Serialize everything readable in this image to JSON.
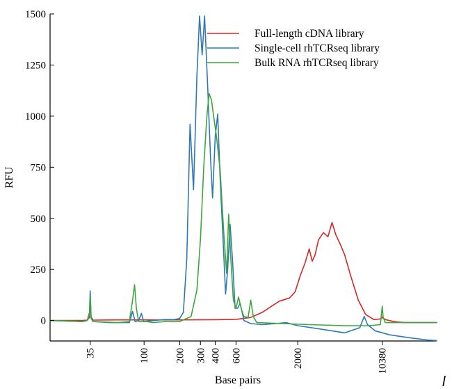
{
  "chart_data": {
    "type": "line",
    "title": "",
    "xlabel": "Base pairs",
    "ylabel": "RFU",
    "x_scale": "log",
    "ylim": [
      -100,
      1500
    ],
    "y_ticks": [
      0,
      250,
      500,
      750,
      1000,
      1250,
      1500
    ],
    "x_ticks": [
      {
        "value": 35,
        "label": "35"
      },
      {
        "value": 100,
        "label": "100"
      },
      {
        "value": 200,
        "label": "200"
      },
      {
        "value": 300,
        "label": "300"
      },
      {
        "value": 400,
        "label": "400"
      },
      {
        "value": 600,
        "label": "600"
      },
      {
        "value": 2000,
        "label": "2000"
      },
      {
        "value": 10380,
        "label": "10380"
      }
    ],
    "legend_position": "top-right",
    "grid": false,
    "corner_mark": "l",
    "series": [
      {
        "name": "Full-length cDNA library",
        "color": "#d62728",
        "points": [
          [
            16,
            0
          ],
          [
            30,
            0
          ],
          [
            33,
            2
          ],
          [
            34.5,
            15
          ],
          [
            35,
            110
          ],
          [
            35.5,
            20
          ],
          [
            37,
            2
          ],
          [
            60,
            3
          ],
          [
            100,
            3
          ],
          [
            200,
            3
          ],
          [
            400,
            4
          ],
          [
            600,
            6
          ],
          [
            800,
            15
          ],
          [
            1000,
            40
          ],
          [
            1200,
            70
          ],
          [
            1400,
            95
          ],
          [
            1700,
            110
          ],
          [
            1900,
            140
          ],
          [
            2100,
            220
          ],
          [
            2300,
            280
          ],
          [
            2500,
            350
          ],
          [
            2650,
            290
          ],
          [
            2800,
            320
          ],
          [
            3000,
            395
          ],
          [
            3300,
            430
          ],
          [
            3600,
            410
          ],
          [
            3900,
            480
          ],
          [
            4200,
            420
          ],
          [
            4600,
            370
          ],
          [
            5000,
            320
          ],
          [
            5600,
            220
          ],
          [
            6500,
            100
          ],
          [
            7500,
            30
          ],
          [
            8800,
            5
          ],
          [
            10000,
            8
          ],
          [
            10380,
            15
          ],
          [
            11000,
            5
          ],
          [
            13000,
            -5
          ],
          [
            16000,
            -10
          ],
          [
            20000,
            -10
          ],
          [
            30000,
            -10
          ]
        ]
      },
      {
        "name": "Single-cell rhTCRseq library",
        "color": "#2f78b8",
        "points": [
          [
            16,
            0
          ],
          [
            30,
            -5
          ],
          [
            33,
            0
          ],
          [
            34.5,
            40
          ],
          [
            35,
            145
          ],
          [
            35.6,
            20
          ],
          [
            37,
            -5
          ],
          [
            50,
            -10
          ],
          [
            75,
            -10
          ],
          [
            80,
            45
          ],
          [
            84,
            -5
          ],
          [
            90,
            0
          ],
          [
            95,
            35
          ],
          [
            99,
            -5
          ],
          [
            120,
            0
          ],
          [
            150,
            5
          ],
          [
            180,
            5
          ],
          [
            200,
            10
          ],
          [
            215,
            40
          ],
          [
            230,
            300
          ],
          [
            245,
            960
          ],
          [
            262,
            640
          ],
          [
            280,
            1200
          ],
          [
            295,
            1490
          ],
          [
            310,
            1300
          ],
          [
            325,
            1490
          ],
          [
            345,
            1150
          ],
          [
            365,
            800
          ],
          [
            380,
            600
          ],
          [
            400,
            900
          ],
          [
            420,
            1010
          ],
          [
            440,
            700
          ],
          [
            470,
            350
          ],
          [
            490,
            130
          ],
          [
            510,
            250
          ],
          [
            535,
            470
          ],
          [
            560,
            300
          ],
          [
            590,
            60
          ],
          [
            620,
            60
          ],
          [
            650,
            85
          ],
          [
            700,
            0
          ],
          [
            800,
            -15
          ],
          [
            1000,
            -20
          ],
          [
            1300,
            -15
          ],
          [
            1600,
            -10
          ],
          [
            2000,
            -25
          ],
          [
            3000,
            -40
          ],
          [
            5000,
            -60
          ],
          [
            6700,
            -35
          ],
          [
            7300,
            20
          ],
          [
            7800,
            -20
          ],
          [
            9000,
            -50
          ],
          [
            12000,
            -70
          ],
          [
            18000,
            -85
          ],
          [
            25000,
            -95
          ],
          [
            30000,
            -98
          ]
        ]
      },
      {
        "name": "Bulk RNA rhTCRseq library",
        "color": "#3ca63c",
        "points": [
          [
            16,
            0
          ],
          [
            30,
            -5
          ],
          [
            33,
            0
          ],
          [
            34.5,
            30
          ],
          [
            35,
            120
          ],
          [
            35.6,
            10
          ],
          [
            37,
            -5
          ],
          [
            60,
            -10
          ],
          [
            75,
            -5
          ],
          [
            80,
            100
          ],
          [
            83,
            175
          ],
          [
            86,
            60
          ],
          [
            90,
            -5
          ],
          [
            105,
            -5
          ],
          [
            120,
            -10
          ],
          [
            150,
            -5
          ],
          [
            200,
            -5
          ],
          [
            250,
            20
          ],
          [
            280,
            150
          ],
          [
            300,
            400
          ],
          [
            320,
            750
          ],
          [
            340,
            1000
          ],
          [
            355,
            1110
          ],
          [
            372,
            1080
          ],
          [
            388,
            1000
          ],
          [
            410,
            900
          ],
          [
            440,
            740
          ],
          [
            470,
            450
          ],
          [
            500,
            230
          ],
          [
            520,
            520
          ],
          [
            540,
            320
          ],
          [
            570,
            100
          ],
          [
            600,
            60
          ],
          [
            630,
            115
          ],
          [
            670,
            50
          ],
          [
            700,
            20
          ],
          [
            760,
            15
          ],
          [
            800,
            100
          ],
          [
            840,
            20
          ],
          [
            900,
            -10
          ],
          [
            1500,
            -15
          ],
          [
            2500,
            -20
          ],
          [
            5000,
            -25
          ],
          [
            8000,
            -25
          ],
          [
            10000,
            -20
          ],
          [
            10250,
            40
          ],
          [
            10380,
            70
          ],
          [
            10550,
            20
          ],
          [
            11000,
            -10
          ],
          [
            15000,
            -10
          ],
          [
            30000,
            -10
          ]
        ]
      }
    ]
  }
}
